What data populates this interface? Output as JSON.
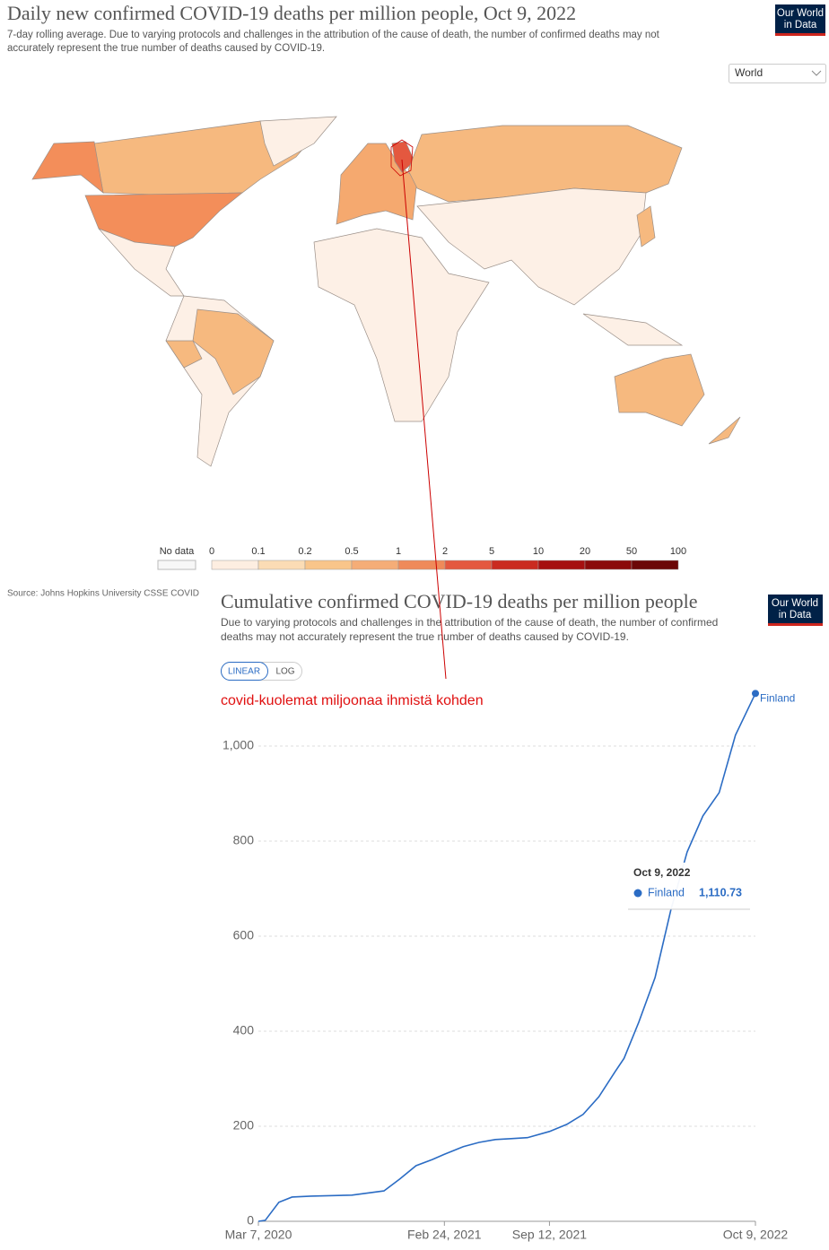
{
  "logo": [
    "Our World",
    "in Data"
  ],
  "map": {
    "title": "Daily new confirmed COVID-19 deaths per million people, Oct 9, 2022",
    "subtitle": [
      "7-day rolling average. Due to varying protocols and challenges in the attribution of the cause of death, the number of confirmed deaths may not",
      "accurately represent the true number of deaths caused by COVID-19."
    ],
    "region": "World",
    "source": "Source: Johns Hopkins University CSSE COVID",
    "legend": {
      "no_data": "No data",
      "bins": [
        0,
        0.1,
        0.2,
        0.5,
        1,
        2,
        5,
        10,
        20,
        50,
        100
      ],
      "colors": [
        "#fdeee1",
        "#fbdcb5",
        "#f9c58a",
        "#f5ad77",
        "#ef8a5a",
        "#e4583f",
        "#ca2b20",
        "#a60f0f",
        "#8b0a0a",
        "#6c0707"
      ]
    }
  },
  "chart_data": {
    "type": "line",
    "title": "Cumulative confirmed COVID-19 deaths per million people",
    "subtitle": [
      "Due to varying protocols and challenges in the attribution of the cause of death, the number of confirmed",
      "deaths may not accurately represent the true number of deaths caused by COVID-19."
    ],
    "scale_buttons": [
      "LINEAR",
      "LOG"
    ],
    "log_scale": false,
    "annotation": "covid-kuolemat miljoonaa ihmistä kohden",
    "x": [
      "2020-03-07",
      "2020-03-20",
      "2020-04-15",
      "2020-05-10",
      "2020-06-15",
      "2020-09-01",
      "2020-11-01",
      "2020-12-01",
      "2021-01-01",
      "2021-02-01",
      "2021-02-24",
      "2021-04-01",
      "2021-05-01",
      "2021-06-01",
      "2021-07-01",
      "2021-08-01",
      "2021-09-12",
      "2021-10-15",
      "2021-11-15",
      "2021-12-15",
      "2022-01-15",
      "2022-02-01",
      "2022-03-01",
      "2022-04-01",
      "2022-05-01",
      "2022-06-01",
      "2022-07-01",
      "2022-08-01",
      "2022-09-01",
      "2022-10-09"
    ],
    "series": [
      {
        "name": "Finland",
        "color": "#2b6cc4",
        "values": [
          0,
          2,
          40,
          51,
          53,
          55,
          64,
          89,
          117,
          130,
          141,
          157,
          166,
          172,
          174,
          176,
          189,
          204,
          225,
          262,
          315,
          343,
          419,
          513,
          655,
          777,
          853,
          902,
          1023,
          1110.73
        ]
      }
    ],
    "tooltip": {
      "title": "Oct 9, 2022",
      "value_label": "1,110.73"
    },
    "xlim": [
      "2020-03-07",
      "2022-10-09"
    ],
    "xticks": [
      {
        "value": "2020-03-07",
        "label": "Mar 7, 2020"
      },
      {
        "value": "2021-02-24",
        "label": "Feb 24, 2021"
      },
      {
        "value": "2021-09-12",
        "label": "Sep 12, 2021"
      },
      {
        "value": "2022-10-09",
        "label": "Oct 9, 2022"
      }
    ],
    "ylim": [
      0,
      1120
    ],
    "yticks": [
      0,
      200,
      400,
      600,
      800,
      {
        "value": 1000,
        "label": "1,000"
      }
    ],
    "grid": true
  }
}
